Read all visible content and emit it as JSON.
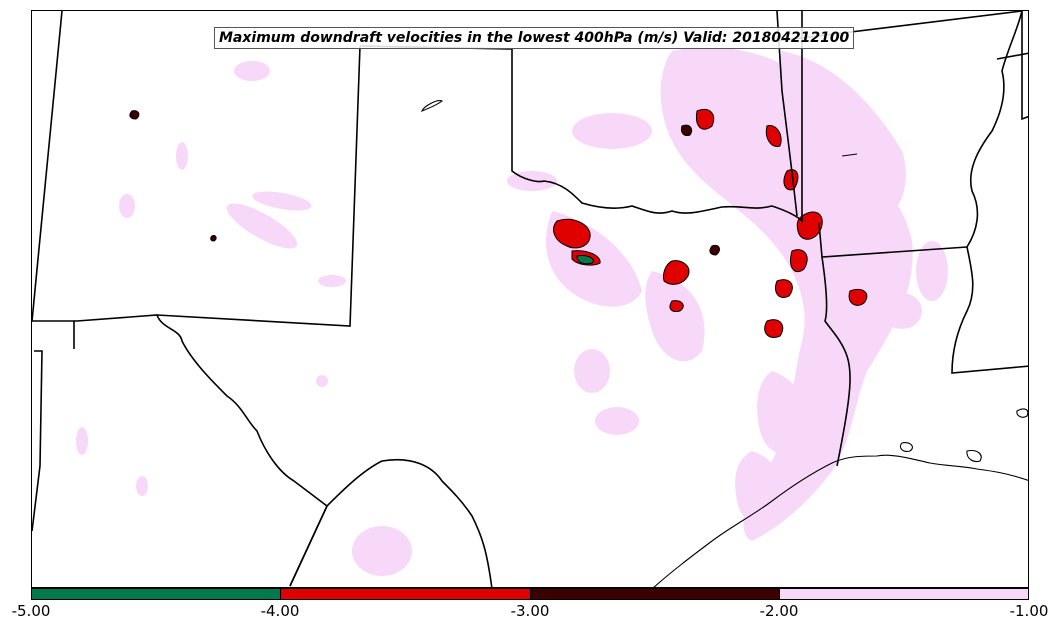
{
  "title": "Maximum downdraft velocities in the lowest 400hPa (m/s) Valid: 201804212100",
  "colorbar": {
    "ticks": [
      "-5.00",
      "-4.00",
      "-3.00",
      "-2.00",
      "-1.00"
    ],
    "bins": [
      {
        "from": -5.0,
        "to": -4.0,
        "color": "#007a4d"
      },
      {
        "from": -4.0,
        "to": -3.0,
        "color": "#e00000"
      },
      {
        "from": -3.0,
        "to": -2.0,
        "color": "#3d0000"
      },
      {
        "from": -2.0,
        "to": -1.0,
        "color": "#f8d8f8"
      }
    ]
  },
  "colors": {
    "light": "#f8d8f8",
    "moderate": "#3d0000",
    "strong": "#e00000",
    "extreme": "#007a4d",
    "boundary": "#000000"
  }
}
